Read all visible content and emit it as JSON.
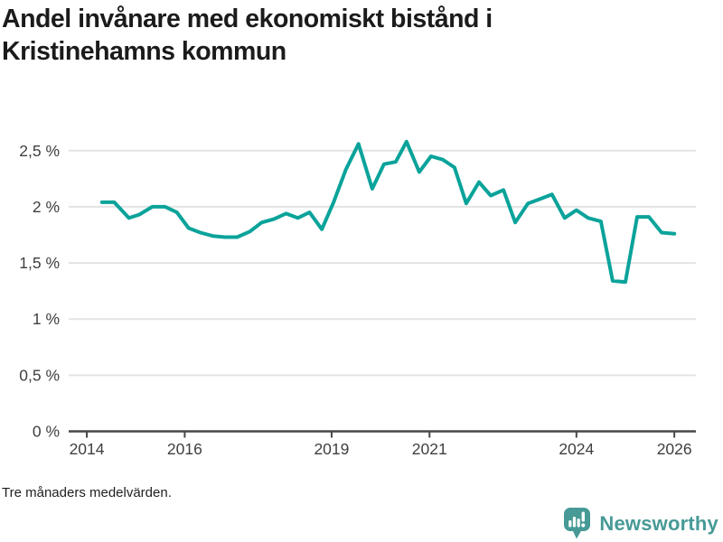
{
  "title": {
    "line1": "Andel invånare med ekonomiskt bistånd i",
    "line2": "Kristinehamns kommun"
  },
  "footnote": "Tre månaders medelvärden.",
  "branding": {
    "name": "Newsworthy",
    "color": "#479a96"
  },
  "chart_data": {
    "type": "line",
    "title": "Andel invånare med ekonomiskt bistånd i Kristinehamns kommun",
    "xlabel": "",
    "ylabel": "",
    "xlim": [
      2013.63,
      2026.44
    ],
    "ylim": [
      0,
      2.68
    ],
    "grid": "horizontal",
    "legend_position": "none",
    "x_ticks": [
      2014,
      2016,
      2019,
      2021,
      2024,
      2026
    ],
    "y_ticks": [
      {
        "value": 0,
        "label": "0 %"
      },
      {
        "value": 0.5,
        "label": "0,5 %"
      },
      {
        "value": 1,
        "label": "1 %"
      },
      {
        "value": 1.5,
        "label": "1,5 %"
      },
      {
        "value": 2,
        "label": "2 %"
      },
      {
        "value": 2.5,
        "label": "2,5 %"
      }
    ],
    "colors": {
      "line": "#0aa39a",
      "grid": "#e3e3e3",
      "axis": "#474747",
      "tick_text": "#3f3f3f"
    },
    "series": [
      {
        "name": "Andel invånare med ekonomiskt bistånd (tre månaders medelvärden)",
        "color": "#0aa39a",
        "points": [
          [
            2014.31,
            2.04
          ],
          [
            2014.56,
            2.04
          ],
          [
            2014.86,
            1.9
          ],
          [
            2015.07,
            1.93
          ],
          [
            2015.34,
            2.0
          ],
          [
            2015.6,
            2.0
          ],
          [
            2015.84,
            1.95
          ],
          [
            2016.08,
            1.81
          ],
          [
            2016.32,
            1.77
          ],
          [
            2016.57,
            1.74
          ],
          [
            2016.82,
            1.73
          ],
          [
            2017.07,
            1.73
          ],
          [
            2017.33,
            1.78
          ],
          [
            2017.57,
            1.86
          ],
          [
            2017.82,
            1.89
          ],
          [
            2018.07,
            1.94
          ],
          [
            2018.31,
            1.9
          ],
          [
            2018.55,
            1.95
          ],
          [
            2018.8,
            1.8
          ],
          [
            2019.04,
            2.04
          ],
          [
            2019.29,
            2.33
          ],
          [
            2019.55,
            2.56
          ],
          [
            2019.83,
            2.16
          ],
          [
            2020.07,
            2.38
          ],
          [
            2020.31,
            2.4
          ],
          [
            2020.53,
            2.58
          ],
          [
            2020.79,
            2.31
          ],
          [
            2021.03,
            2.45
          ],
          [
            2021.27,
            2.42
          ],
          [
            2021.51,
            2.35
          ],
          [
            2021.75,
            2.03
          ],
          [
            2022.01,
            2.22
          ],
          [
            2022.25,
            2.1
          ],
          [
            2022.51,
            2.15
          ],
          [
            2022.75,
            1.86
          ],
          [
            2023.01,
            2.03
          ],
          [
            2023.26,
            2.07
          ],
          [
            2023.5,
            2.11
          ],
          [
            2023.76,
            1.9
          ],
          [
            2024.0,
            1.97
          ],
          [
            2024.24,
            1.9
          ],
          [
            2024.5,
            1.87
          ],
          [
            2024.74,
            1.34
          ],
          [
            2025.0,
            1.33
          ],
          [
            2025.24,
            1.91
          ],
          [
            2025.48,
            1.91
          ],
          [
            2025.74,
            1.77
          ],
          [
            2026.0,
            1.76
          ]
        ]
      }
    ]
  }
}
